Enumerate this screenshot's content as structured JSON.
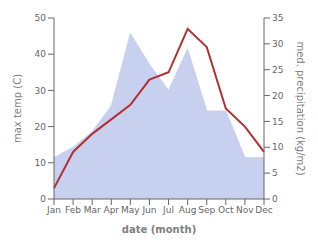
{
  "chart_data": {
    "type": "line",
    "xlabel": "date (month)",
    "ylabel": "max temp (C)",
    "y2label": "med. precipitation (kg/m2)",
    "categories": [
      "Jan",
      "Feb",
      "Mar",
      "Apr",
      "May",
      "Jun",
      "Jul",
      "Aug",
      "Sep",
      "Oct",
      "Nov",
      "Dec"
    ],
    "series": [
      {
        "type": "area",
        "axis": "y2",
        "color": "#c8d0f0",
        "values": [
          8,
          10,
          13,
          18,
          32,
          26,
          21,
          29,
          17,
          17,
          8,
          8
        ]
      },
      {
        "type": "line",
        "axis": "y",
        "color": "#b03030",
        "values": [
          3,
          13,
          18,
          22,
          26,
          33,
          35,
          47,
          42,
          25,
          20,
          13
        ]
      }
    ],
    "ylim": [
      0,
      50
    ],
    "yticks": [
      0,
      10,
      20,
      30,
      40,
      50
    ],
    "y2lim": [
      0,
      35
    ],
    "y2ticks": [
      0,
      5,
      10,
      15,
      20,
      25,
      30,
      35
    ],
    "grid": false
  }
}
